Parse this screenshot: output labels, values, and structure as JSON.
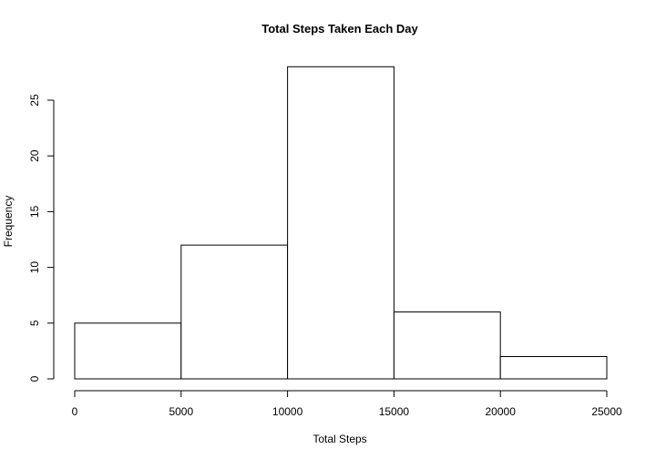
{
  "chart_data": {
    "type": "bar",
    "title": "Total Steps Taken Each Day",
    "xlabel": "Total Steps",
    "ylabel": "Frequency",
    "bins": [
      {
        "start": 0,
        "end": 5000,
        "count": 5
      },
      {
        "start": 5000,
        "end": 10000,
        "count": 12
      },
      {
        "start": 10000,
        "end": 15000,
        "count": 28
      },
      {
        "start": 15000,
        "end": 20000,
        "count": 6
      },
      {
        "start": 20000,
        "end": 25000,
        "count": 2
      }
    ],
    "xlim": [
      0,
      25000
    ],
    "ylim": [
      0,
      28
    ],
    "x_ticks": [
      0,
      5000,
      10000,
      15000,
      20000,
      25000
    ],
    "y_ticks": [
      0,
      5,
      10,
      15,
      20,
      25
    ],
    "grid": false,
    "legend": "none",
    "colors": {
      "bar_fill": "#ffffff",
      "bar_stroke": "#000000"
    }
  }
}
